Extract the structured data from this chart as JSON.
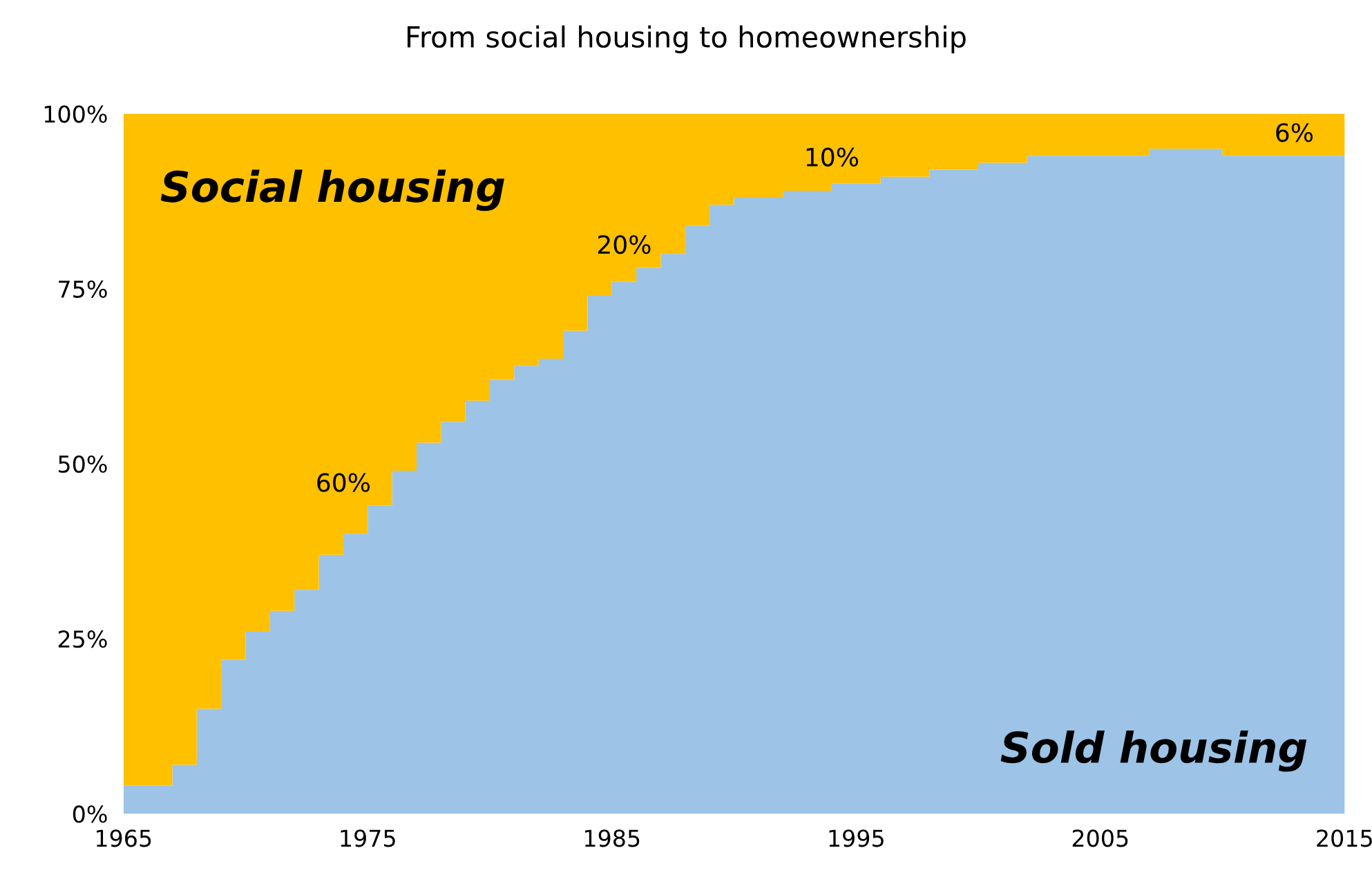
{
  "chart_data": {
    "type": "area",
    "title": "From social housing to homeownership",
    "stacked": true,
    "x": [
      1965,
      1966,
      1967,
      1968,
      1969,
      1970,
      1971,
      1972,
      1973,
      1974,
      1975,
      1976,
      1977,
      1978,
      1979,
      1980,
      1981,
      1982,
      1983,
      1984,
      1985,
      1986,
      1987,
      1988,
      1989,
      1990,
      1991,
      1992,
      1993,
      1994,
      1995,
      1996,
      1997,
      1998,
      1999,
      2000,
      2001,
      2002,
      2003,
      2004,
      2005,
      2006,
      2007,
      2008,
      2009,
      2010,
      2011,
      2012,
      2013,
      2014,
      2015
    ],
    "series": [
      {
        "name": "Sold housing",
        "color": "#9dc3e6",
        "values": [
          4,
          4,
          7,
          15,
          22,
          26,
          29,
          32,
          37,
          40,
          44,
          49,
          53,
          56,
          59,
          62,
          64,
          65,
          69,
          74,
          76,
          78,
          80,
          84,
          87,
          88,
          88,
          89,
          89,
          90,
          90,
          91,
          91,
          92,
          92,
          93,
          93,
          94,
          94,
          94,
          94,
          94,
          95,
          95,
          95,
          94,
          94,
          94,
          94,
          94,
          94
        ]
      },
      {
        "name": "Social housing",
        "color": "#ffc000",
        "values": [
          96,
          96,
          93,
          85,
          78,
          74,
          71,
          68,
          63,
          60,
          56,
          51,
          47,
          44,
          41,
          38,
          36,
          35,
          31,
          26,
          24,
          22,
          20,
          16,
          13,
          12,
          12,
          11,
          11,
          10,
          10,
          9,
          9,
          8,
          8,
          7,
          7,
          6,
          6,
          6,
          6,
          6,
          5,
          5,
          5,
          6,
          6,
          6,
          6,
          6,
          6
        ]
      }
    ],
    "xlim": [
      1965,
      2015
    ],
    "xticks": [
      1965,
      1975,
      1985,
      1995,
      2005,
      2015
    ],
    "ylim": [
      0,
      100
    ],
    "yticks": [
      {
        "value": 0,
        "label": "0%"
      },
      {
        "value": 25,
        "label": "25%"
      },
      {
        "value": 50,
        "label": "50%"
      },
      {
        "value": 75,
        "label": "75%"
      },
      {
        "value": 100,
        "label": "100%"
      }
    ],
    "annotations": [
      "60%",
      "20%",
      "10%",
      "6%"
    ]
  }
}
